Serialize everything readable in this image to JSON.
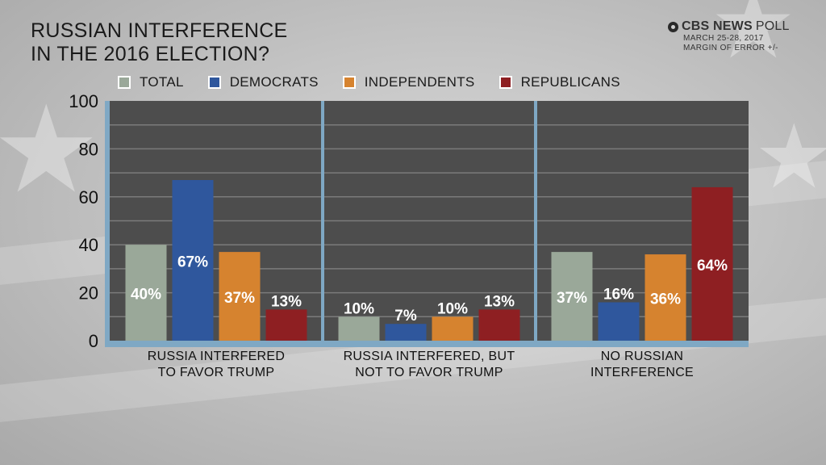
{
  "header": {
    "title_line1": "RUSSIAN INTERFERENCE",
    "title_line2": "IN THE 2016 ELECTION?",
    "brand": "CBS NEWS",
    "brand_suffix": "POLL",
    "dates": "MARCH 25-28, 2017",
    "margin": "MARGIN OF ERROR +/-"
  },
  "colors": {
    "plot_bg": "#4d4d4d",
    "gridline": "#7b7b7b",
    "axis_frame": "#7fa8c4",
    "label_text": "#ffffff",
    "axis_text": "#111111"
  },
  "chart_data": {
    "type": "bar",
    "title": "RUSSIAN INTERFERENCE IN THE 2016 ELECTION?",
    "xlabel": "",
    "ylabel": "",
    "ylim": [
      0,
      100
    ],
    "yticks": [
      0,
      20,
      40,
      60,
      80,
      100
    ],
    "grid": true,
    "legend_position": "top",
    "categories": [
      [
        "RUSSIA INTERFERED",
        "TO FAVOR TRUMP"
      ],
      [
        "RUSSIA INTERFERED, BUT",
        "NOT TO FAVOR TRUMP"
      ],
      [
        "NO RUSSIAN",
        "INTERFERENCE"
      ]
    ],
    "series": [
      {
        "name": "TOTAL",
        "color": "#9aa899",
        "values": [
          40,
          10,
          37
        ],
        "labels": [
          "40%",
          "10%",
          "37%"
        ]
      },
      {
        "name": "DEMOCRATS",
        "color": "#2f579d",
        "values": [
          67,
          7,
          16
        ],
        "labels": [
          "67%",
          "7%",
          "16%"
        ]
      },
      {
        "name": "INDEPENDENTS",
        "color": "#d6832f",
        "values": [
          37,
          10,
          36
        ],
        "labels": [
          "37%",
          "10%",
          "36%"
        ]
      },
      {
        "name": "REPUBLICANS",
        "color": "#8e1f22",
        "values": [
          13,
          13,
          64
        ],
        "labels": [
          "13%",
          "13%",
          "64%"
        ]
      }
    ]
  }
}
